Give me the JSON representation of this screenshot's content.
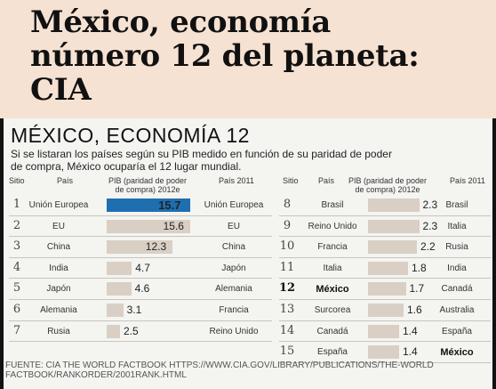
{
  "headline": {
    "line1": "México, economía",
    "line2": "número 12 del planeta:",
    "line3": "CIA"
  },
  "infographic": {
    "title": "MÉXICO, ECONOMÍA 12",
    "subtitle_line1": "Si se listaran los países según su PIB medido en función de su paridad de poder",
    "subtitle_line2": "de  compra, México ocuparía el 12 lugar mundial.",
    "headers": {
      "sitio": "Sitio",
      "pais": "País",
      "pib_line1": "PIB (paridad de poder",
      "pib_line2": "de compra) 2012e",
      "pais2011": "País 2011"
    },
    "source": "FUENTE: CIA THE WORLD FACTBOOK  HTTPS://WWW.CIA.GOV/LIBRARY/PUBLICATIONS/THE-WORLD FACTBOOK/RANKORDER/2001RANK.HTML"
  },
  "colors": {
    "bar_default": "#d9cfc4",
    "bar_highlight": "#1e6fb0",
    "headline_bg": "#f6e2d2"
  },
  "chart_data": {
    "type": "bar",
    "title": "MÉXICO, ECONOMÍA 12",
    "xlabel": "",
    "ylabel": "PIB (paridad de poder de compra) 2012e",
    "left_xlim": [
      0,
      16
    ],
    "right_xlim": [
      0,
      4
    ],
    "rows": [
      {
        "rank": "1",
        "country": "Unión Europea",
        "value": 15.7,
        "label": "15.7",
        "country2011": "Unión Europea",
        "highlight": true
      },
      {
        "rank": "2",
        "country": "EU",
        "value": 15.6,
        "label": "15.6",
        "country2011": "EU"
      },
      {
        "rank": "3",
        "country": "China",
        "value": 12.3,
        "label": "12.3",
        "country2011": "China"
      },
      {
        "rank": "4",
        "country": "India",
        "value": 4.7,
        "label": "4.7",
        "country2011": "Japón"
      },
      {
        "rank": "5",
        "country": "Japón",
        "value": 4.6,
        "label": "4.6",
        "country2011": "Alemania"
      },
      {
        "rank": "6",
        "country": "Alemania",
        "value": 3.1,
        "label": "3.1",
        "country2011": "Francia"
      },
      {
        "rank": "7",
        "country": "Rusia",
        "value": 2.5,
        "label": "2.5",
        "country2011": "Reino Unido"
      },
      {
        "rank": "8",
        "country": "Brasil",
        "value": 2.3,
        "label": "2.3",
        "country2011": "Brasil"
      },
      {
        "rank": "9",
        "country": "Reino Unido",
        "value": 2.3,
        "label": "2.3",
        "country2011": "Italia"
      },
      {
        "rank": "10",
        "country": "Francia",
        "value": 2.2,
        "label": "2.2",
        "country2011": "Rusia"
      },
      {
        "rank": "11",
        "country": "Italia",
        "value": 1.8,
        "label": "1.8",
        "country2011": "India"
      },
      {
        "rank": "12",
        "country": "México",
        "value": 1.7,
        "label": "1.7",
        "country2011": "Canadá",
        "bold": true
      },
      {
        "rank": "13",
        "country": "Surcorea",
        "value": 1.6,
        "label": "1.6",
        "country2011": "Australia"
      },
      {
        "rank": "14",
        "country": "Canadá",
        "value": 1.4,
        "label": "1.4",
        "country2011": "España"
      },
      {
        "rank": "15",
        "country": "España",
        "value": 1.4,
        "label": "1.4",
        "country2011": "México",
        "bold2011": true
      }
    ]
  }
}
